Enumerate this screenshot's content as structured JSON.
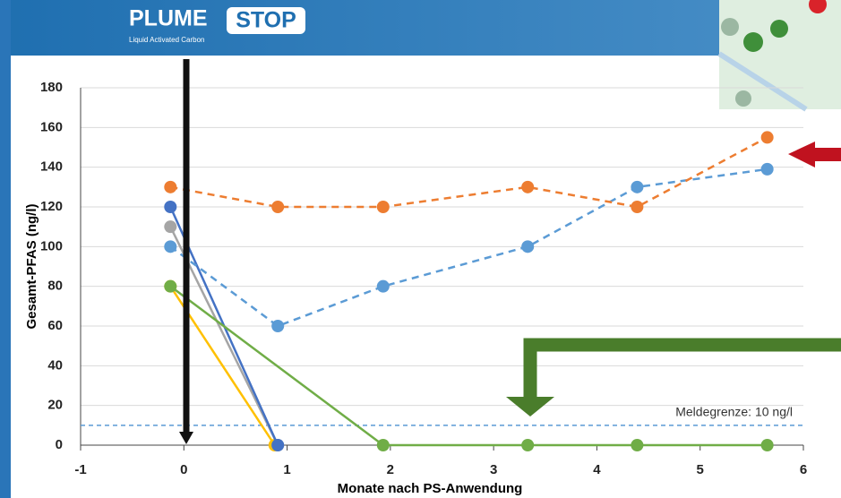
{
  "header": {
    "logo": "PLUME",
    "logo_highlight": "STOP",
    "tagline": "Liquid Activated Carbon"
  },
  "chart_data": {
    "type": "line",
    "x_label": "Monate nach PS-Anwendung",
    "y_label": "Gesamt-PFAS (ng/l)",
    "xlim": [
      -1,
      6
    ],
    "ylim": [
      0,
      180
    ],
    "xticks": [
      -1,
      0,
      1,
      2,
      3,
      4,
      5,
      6
    ],
    "yticks": [
      0,
      20,
      40,
      60,
      80,
      100,
      120,
      140,
      160,
      180
    ],
    "grid": true,
    "series": [
      {
        "color": "#ffc000",
        "dashed": false,
        "x": [
          -0.13,
          0.88
        ],
        "values": [
          80,
          0
        ]
      },
      {
        "color": "#a5a5a5",
        "dashed": false,
        "x": [
          -0.13,
          0.91
        ],
        "values": [
          110,
          0
        ]
      },
      {
        "color": "#4472c4",
        "dashed": false,
        "x": [
          -0.13,
          0.91
        ],
        "values": [
          120,
          0
        ]
      },
      {
        "color": "#70ad47",
        "dashed": false,
        "x": [
          -0.13,
          1.93,
          3.33,
          4.39,
          5.65
        ],
        "values": [
          80,
          0,
          0,
          0,
          0
        ]
      },
      {
        "color": "#5b9bd5",
        "dashed": true,
        "x": [
          -0.13,
          0.91,
          1.93,
          3.33,
          4.39,
          5.65
        ],
        "values": [
          100,
          60,
          80,
          100,
          130,
          139
        ]
      },
      {
        "color": "#ed7d31",
        "dashed": true,
        "x": [
          -0.13,
          0.91,
          1.93,
          3.33,
          4.39,
          5.65
        ],
        "values": [
          130,
          120,
          120,
          130,
          120,
          155
        ]
      }
    ],
    "threshold": {
      "text": "Meldegrenze: 10 ng/l",
      "value": 10,
      "color": "#5b9bd5"
    }
  }
}
